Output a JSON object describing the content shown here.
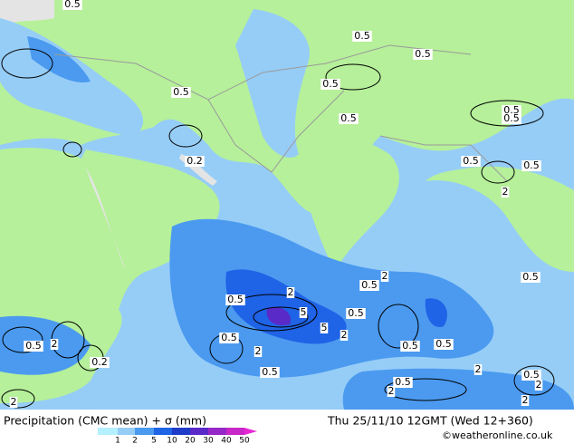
{
  "title": "Precipitation (CMC mean) + σ (mm)",
  "date": "Thu 25/11/10 12GMT (Wed 12+360)",
  "credit": "©weatheronline.co.uk",
  "colorbar": {
    "labels": [
      "1",
      "2",
      "5",
      "10",
      "20",
      "30",
      "40",
      "50"
    ]
  },
  "contour_labels": [
    "0.5",
    "0.5",
    "0.5",
    "0.5",
    "0.5",
    "0.5",
    "0.5",
    "0.5",
    "0.2",
    "0.5",
    "0.5",
    "2",
    "2",
    "0.5",
    "0.5",
    "0.5",
    "2",
    "5",
    "5",
    "2",
    "0.5",
    "0.5",
    "2",
    "0.5",
    "0.5",
    "0.5",
    "2",
    "0.2",
    "0.5",
    "0.5",
    "2",
    "0.5",
    "2",
    "2",
    "2",
    "2"
  ]
}
